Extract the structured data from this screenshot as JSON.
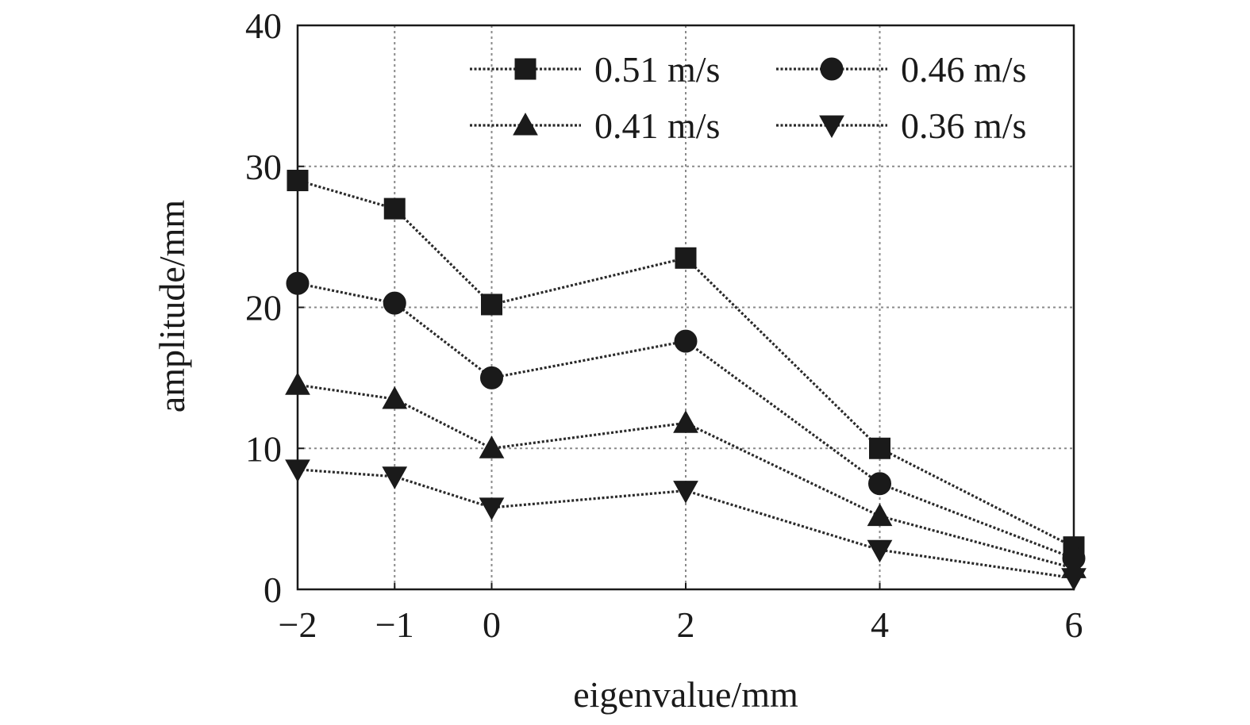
{
  "chart_data": {
    "type": "line",
    "xlabel": "eigenvalue/mm",
    "ylabel": "amplitude/mm",
    "categories": [
      "−2",
      "−1",
      "0",
      "2",
      "4",
      "6"
    ],
    "x": [
      -2,
      -1,
      0,
      2,
      4,
      6
    ],
    "xlim": [
      -2,
      6
    ],
    "ylim": [
      0,
      40
    ],
    "xticks": [
      -2,
      -1,
      0,
      2,
      4,
      6
    ],
    "yticks": [
      0,
      10,
      20,
      30,
      40
    ],
    "ytick_labels": [
      "0",
      "10",
      "20",
      "30",
      "40"
    ],
    "grid": true,
    "legend_position": "top-right",
    "series": [
      {
        "name": "0.51 m/s",
        "marker": "square",
        "values": [
          29.0,
          27.0,
          20.2,
          23.5,
          10.0,
          3.0
        ]
      },
      {
        "name": "0.46 m/s",
        "marker": "circle",
        "values": [
          21.7,
          20.3,
          15.0,
          17.6,
          7.5,
          2.2
        ]
      },
      {
        "name": "0.41 m/s",
        "marker": "triangle-up",
        "values": [
          14.5,
          13.5,
          10.0,
          11.8,
          5.2,
          1.5
        ]
      },
      {
        "name": "0.36 m/s",
        "marker": "triangle-down",
        "values": [
          8.5,
          8.0,
          5.8,
          7.0,
          2.8,
          0.8
        ]
      }
    ],
    "colors": {
      "ink": "#1a1a1a",
      "grid": "#8a8a8a"
    }
  }
}
